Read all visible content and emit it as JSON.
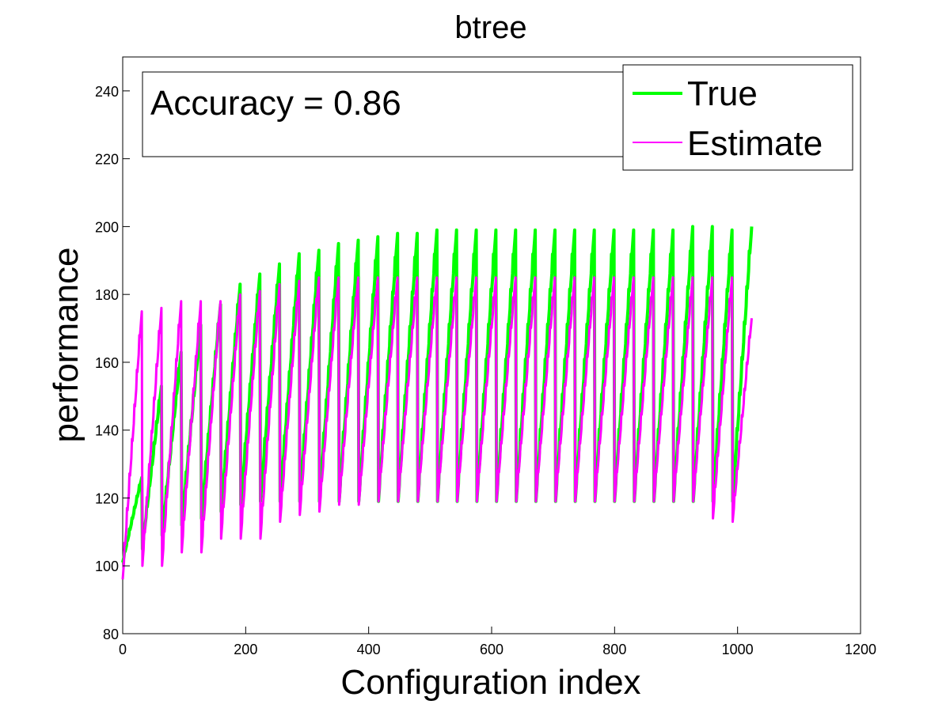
{
  "chart_data": {
    "type": "line",
    "title": "btree",
    "xlabel": "Configuration index",
    "ylabel": "performance",
    "xlim": [
      0,
      1200
    ],
    "ylim": [
      80,
      250
    ],
    "xticks": [
      0,
      200,
      400,
      600,
      800,
      1000,
      1200
    ],
    "yticks": [
      80,
      100,
      120,
      140,
      160,
      180,
      200,
      220,
      240
    ],
    "grid": false,
    "legend": {
      "position": "top-right",
      "entries": [
        "True",
        "Estimate"
      ]
    },
    "annotation": "Accuracy = 0.86",
    "series": [
      {
        "name": "True",
        "color": "#00ff00",
        "period": 32,
        "cycles": 32,
        "cycle_min": [
          101,
          105,
          109,
          112,
          114,
          116,
          118,
          119,
          119,
          119,
          119,
          119,
          119,
          119,
          119,
          119,
          119,
          119,
          119,
          119,
          119,
          119,
          119,
          119,
          119,
          119,
          119,
          119,
          119,
          119,
          119,
          119
        ],
        "cycle_max": [
          126,
          153,
          163,
          171,
          177,
          183,
          186,
          189,
          192,
          193,
          195,
          196,
          197,
          198,
          198,
          199,
          199,
          199,
          199,
          199,
          199,
          199,
          199,
          199,
          199,
          199,
          199,
          199,
          200,
          200,
          199,
          200
        ]
      },
      {
        "name": "Estimate",
        "color": "#ff00ff",
        "period": 32,
        "cycles": 32,
        "cycle_min": [
          96,
          100,
          100,
          104,
          104,
          108,
          108,
          108,
          113,
          115,
          116,
          118,
          118,
          119,
          119,
          119,
          119,
          119,
          119,
          119,
          119,
          119,
          119,
          119,
          119,
          119,
          119,
          119,
          119,
          119,
          114,
          113
        ],
        "cycle_max": [
          175,
          176,
          178,
          178,
          178,
          180,
          181,
          183,
          184,
          185,
          185,
          185,
          185,
          185,
          185,
          185,
          185,
          185,
          185,
          185,
          185,
          185,
          185,
          185,
          185,
          185,
          185,
          185,
          185,
          185,
          185,
          173
        ]
      }
    ]
  }
}
